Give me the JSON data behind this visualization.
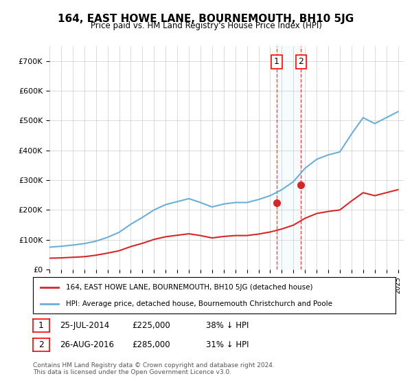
{
  "title": "164, EAST HOWE LANE, BOURNEMOUTH, BH10 5JG",
  "subtitle": "Price paid vs. HM Land Registry's House Price Index (HPI)",
  "hpi_years": [
    1995,
    1996,
    1997,
    1998,
    1999,
    2000,
    2001,
    2002,
    2003,
    2004,
    2005,
    2006,
    2007,
    2008,
    2009,
    2010,
    2011,
    2012,
    2013,
    2014,
    2015,
    2016,
    2017,
    2018,
    2019,
    2020,
    2021,
    2022,
    2023,
    2024,
    2025
  ],
  "hpi_values": [
    75000,
    78000,
    82000,
    87000,
    95000,
    108000,
    125000,
    152000,
    175000,
    200000,
    218000,
    228000,
    238000,
    225000,
    210000,
    220000,
    225000,
    225000,
    235000,
    248000,
    268000,
    295000,
    340000,
    370000,
    385000,
    395000,
    455000,
    510000,
    490000,
    510000,
    530000
  ],
  "price_paid_years": [
    1995,
    1996,
    1997,
    1998,
    1999,
    2000,
    2001,
    2002,
    2003,
    2004,
    2005,
    2006,
    2007,
    2008,
    2009,
    2010,
    2011,
    2012,
    2013,
    2014,
    2015,
    2016,
    2017,
    2018,
    2019,
    2020,
    2021,
    2022,
    2023,
    2024,
    2025
  ],
  "price_paid_values": [
    38000,
    39000,
    41000,
    43000,
    48000,
    55000,
    63000,
    77000,
    88000,
    101000,
    110000,
    115000,
    120000,
    114000,
    106000,
    111000,
    114000,
    114000,
    119000,
    126000,
    136000,
    149000,
    172000,
    188000,
    195000,
    200000,
    230000,
    258000,
    248000,
    258000,
    268000
  ],
  "sale1_year": 2014.57,
  "sale1_price": 225000,
  "sale1_label": "1",
  "sale2_year": 2016.66,
  "sale2_price": 285000,
  "sale2_label": "2",
  "sale1_date": "25-JUL-2014",
  "sale1_amount": "£225,000",
  "sale1_pct": "38% ↓ HPI",
  "sale2_date": "26-AUG-2016",
  "sale2_amount": "£285,000",
  "sale2_pct": "31% ↓ HPI",
  "hpi_color": "#6baed6",
  "price_color": "#d62728",
  "marker_color": "#d62728",
  "ylim": [
    0,
    750000
  ],
  "yticks": [
    0,
    100000,
    200000,
    300000,
    400000,
    500000,
    600000,
    700000
  ],
  "ytick_labels": [
    "£0",
    "£100K",
    "£200K",
    "£300K",
    "£400K",
    "£500K",
    "£600K",
    "£700K"
  ],
  "footer": "Contains HM Land Registry data © Crown copyright and database right 2024.\nThis data is licensed under the Open Government Licence v3.0.",
  "legend1": "164, EAST HOWE LANE, BOURNEMOUTH, BH10 5JG (detached house)",
  "legend2": "HPI: Average price, detached house, Bournemouth Christchurch and Poole",
  "bg_color": "#ffffff",
  "plot_bg": "#ffffff",
  "grid_color": "#cccccc"
}
